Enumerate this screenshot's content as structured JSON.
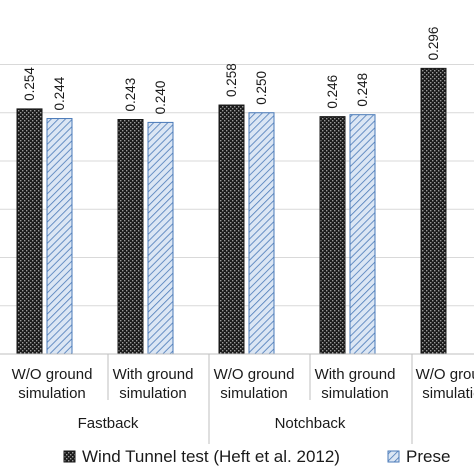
{
  "chart_data": {
    "type": "bar",
    "title": "",
    "xlabel": "",
    "ylabel": "",
    "ylim": [
      0,
      0.31
    ],
    "grid": true,
    "legend_position": "bottom",
    "groups": [
      "Fastback",
      "Notchback",
      ""
    ],
    "categories": [
      [
        "W/O ground",
        "simulation"
      ],
      [
        "With ground",
        "simulation"
      ],
      [
        "W/O ground",
        "simulation"
      ],
      [
        "With ground",
        "simulation"
      ],
      [
        "W/O ground",
        "simulation"
      ]
    ],
    "category_group": [
      0,
      0,
      1,
      1,
      2
    ],
    "series": [
      {
        "name": "Wind Tunnel test (Heft et al. 2012)",
        "values": [
          0.254,
          0.243,
          0.258,
          0.246,
          0.296
        ],
        "labels": [
          "0.254",
          "0.243",
          "0.258",
          "0.246",
          "0.296"
        ],
        "color": "#1a1a1a",
        "pattern": "dotted-dark"
      },
      {
        "name": "Prese",
        "values": [
          0.244,
          0.24,
          0.25,
          0.248,
          null
        ],
        "labels": [
          "0.244",
          "0.240",
          "0.250",
          "0.248",
          ""
        ],
        "color": "#4a7ab8",
        "pattern": "hatched-light"
      }
    ]
  }
}
